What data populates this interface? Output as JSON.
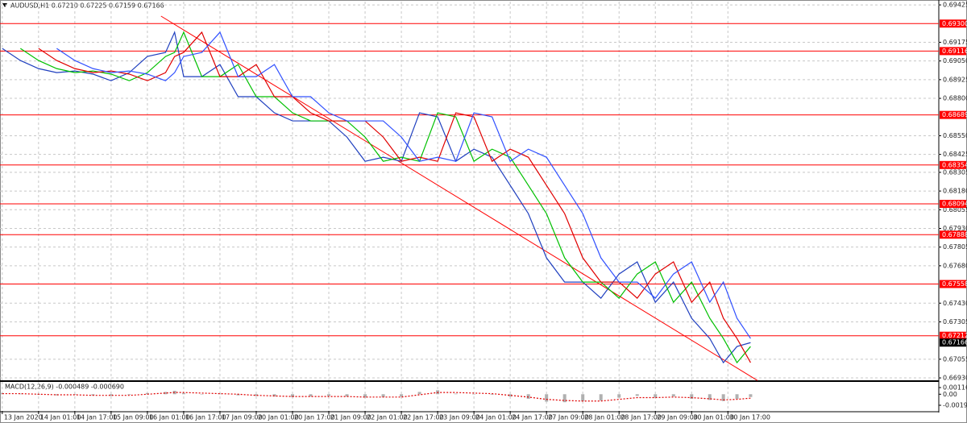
{
  "chart_data": {
    "type": "line",
    "title": "AUDUSD,H1  0.67210 0.67225 0.67159 0.67166",
    "x": [
      0,
      8,
      16,
      24,
      32,
      40,
      48,
      56,
      64,
      72,
      76,
      80,
      88,
      96,
      104,
      112,
      120,
      128,
      136,
      144,
      152,
      160,
      168,
      176,
      184,
      192,
      200,
      208,
      216,
      224,
      232,
      240,
      248,
      256,
      264,
      272,
      280,
      288,
      296,
      304,
      312,
      318,
      324,
      330
    ],
    "xlim": [
      -1,
      413
    ],
    "xticks": [
      {
        "value": 0,
        "label": "13 Jan 2020"
      },
      {
        "value": 16,
        "label": "14 Jan 01:00"
      },
      {
        "value": 32,
        "label": "14 Jan 17:00"
      },
      {
        "value": 48,
        "label": "15 Jan 09:00"
      },
      {
        "value": 64,
        "label": "16 Jan 01:00"
      },
      {
        "value": 80,
        "label": "16 Jan 17:00"
      },
      {
        "value": 96,
        "label": "17 Jan 09:00"
      },
      {
        "value": 112,
        "label": "20 Jan 01:00"
      },
      {
        "value": 128,
        "label": "20 Jan 17:00"
      },
      {
        "value": 144,
        "label": "21 Jan 09:00"
      },
      {
        "value": 160,
        "label": "22 Jan 01:00"
      },
      {
        "value": 176,
        "label": "22 Jan 17:00"
      },
      {
        "value": 192,
        "label": "23 Jan 09:00"
      },
      {
        "value": 208,
        "label": "24 Jan 01:00"
      },
      {
        "value": 224,
        "label": "24 Jan 17:00"
      },
      {
        "value": 240,
        "label": "27 Jan 09:00"
      },
      {
        "value": 256,
        "label": "28 Jan 01:00"
      },
      {
        "value": 272,
        "label": "28 Jan 17:00"
      },
      {
        "value": 288,
        "label": "29 Jan 09:00"
      },
      {
        "value": 304,
        "label": "30 Jan 01:00"
      },
      {
        "value": 320,
        "label": "30 Jan 17:00"
      }
    ],
    "ylim": [
      0.66914,
      0.69447
    ],
    "yticks": [
      0.69425,
      0.69175,
      {
        "value": 0.6905,
        "label": "0.69050"
      },
      0.68925,
      {
        "value": 0.688,
        "label": "0.68800"
      },
      {
        "value": 0.6855,
        "label": "0.68550"
      },
      0.68425,
      0.68305,
      {
        "value": 0.6818,
        "label": "0.68180"
      },
      0.68055,
      {
        "value": 0.6793,
        "label": "0.67930"
      },
      0.67805,
      {
        "value": 0.6768,
        "label": "0.67680"
      },
      {
        "value": 0.6743,
        "label": "0.67430"
      },
      0.67305,
      0.67055,
      {
        "value": 0.6693,
        "label": "0.66930"
      }
    ],
    "grid": true,
    "series": [
      {
        "color": "#1f3fbf",
        "values": [
          0.69134,
          0.69053,
          0.68999,
          0.68972,
          0.68983,
          0.68962,
          0.68918,
          0.68972,
          0.6908,
          0.69107,
          0.69242,
          0.68945,
          0.68945,
          0.69026,
          0.68811,
          0.68811,
          0.68703,
          0.68649,
          0.68649,
          0.68649,
          0.68541,
          0.68379,
          0.68406,
          0.68379,
          0.68703,
          0.68676,
          0.68379,
          0.6846,
          0.68406,
          0.68218,
          0.68029,
          0.67733,
          0.67571,
          0.67571,
          0.67463,
          0.67625,
          0.67706,
          0.67436,
          0.67571,
          0.67329,
          0.67194,
          0.67032,
          0.6714,
          0.67166
        ]
      },
      {
        "color": "#00c000",
        "values": [
          null,
          0.69134,
          0.69053,
          0.68999,
          0.68972,
          0.68983,
          0.68962,
          0.68918,
          0.68972,
          0.6908,
          0.69107,
          0.69242,
          0.68945,
          0.68945,
          0.69026,
          0.68811,
          0.68811,
          0.68703,
          0.68649,
          0.68649,
          0.68649,
          0.68541,
          0.68379,
          0.68406,
          0.68379,
          0.68703,
          0.68676,
          0.68379,
          0.6846,
          0.68406,
          0.68218,
          0.68029,
          0.67733,
          0.67571,
          0.67571,
          0.67463,
          0.67625,
          0.67706,
          0.67436,
          0.67571,
          0.67329,
          0.67194,
          0.67032,
          0.6714
        ]
      },
      {
        "color": "#e00000",
        "values": [
          null,
          null,
          0.69134,
          0.69053,
          0.68999,
          0.68972,
          0.68983,
          0.68962,
          0.68918,
          0.68972,
          0.6908,
          0.69107,
          0.69242,
          0.68945,
          0.68945,
          0.69026,
          0.68811,
          0.68811,
          0.68703,
          0.68649,
          0.68649,
          0.68649,
          0.68541,
          0.68379,
          0.68406,
          0.68379,
          0.68703,
          0.68676,
          0.68379,
          0.6846,
          0.68406,
          0.68218,
          0.68029,
          0.67733,
          0.67571,
          0.67571,
          0.67463,
          0.67625,
          0.67706,
          0.67436,
          0.67571,
          0.67329,
          0.67194,
          0.67032
        ]
      },
      {
        "color": "#3050ff",
        "values": [
          null,
          null,
          null,
          0.69134,
          0.69053,
          0.68999,
          0.68972,
          0.68983,
          0.68962,
          0.68918,
          0.68972,
          0.6908,
          0.69107,
          0.69242,
          0.68945,
          0.68945,
          0.69026,
          0.68811,
          0.68811,
          0.68703,
          0.68649,
          0.68649,
          0.68649,
          0.68541,
          0.68379,
          0.68406,
          0.68379,
          0.68703,
          0.68676,
          0.68379,
          0.6846,
          0.68406,
          0.68218,
          0.68029,
          0.67733,
          0.67571,
          0.67571,
          0.67463,
          0.67625,
          0.67706,
          0.67436,
          0.67571,
          0.67329,
          0.67194
        ]
      }
    ],
    "levels": [
      {
        "value": 0.693,
        "label": "0.69300"
      },
      {
        "value": 0.69116,
        "label": "0.69116"
      },
      {
        "value": 0.68689,
        "label": "0.68689"
      },
      {
        "value": 0.68354,
        "label": "0.68354"
      },
      {
        "value": 0.68094,
        "label": "0.68094"
      },
      {
        "value": 0.67888,
        "label": "0.67888"
      },
      {
        "value": 0.67558,
        "label": "0.67558"
      },
      {
        "value": 0.67212,
        "label": "0.67212"
      }
    ],
    "level_color": "#ff0000",
    "current_price": {
      "value": 0.67166,
      "label": "0.67166"
    },
    "trendline": {
      "x": [
        70,
        333
      ],
      "values": [
        0.6935,
        0.66913
      ],
      "color": "#ff0000"
    },
    "macd": {
      "label": "MACD(12,26,9) -0.000489 -0.000690",
      "ylim": [
        -0.00293,
        0.00216
      ],
      "yticks": [
        0.001167,
        {
          "value": 0,
          "label": "0.00"
        },
        -0.001942
      ],
      "color": "#b0b0b0",
      "signal_color": "#e00000",
      "values": [
        0.0002,
        0.0001,
        -0.0001,
        -0.0002,
        -0.0001,
        -0.0002,
        -0.0003,
        -0.0001,
        0.0002,
        0.0004,
        0.0006,
        0.0002,
        0.0,
        0.0001,
        -0.0002,
        -0.0003,
        -0.0004,
        -0.0005,
        -0.0004,
        -0.0003,
        -0.0004,
        -0.0006,
        -0.0005,
        -0.0004,
        0.0004,
        0.0007,
        0.0001,
        0.0,
        -0.0001,
        -0.0004,
        -0.0008,
        -0.0013,
        -0.0014,
        -0.0012,
        -0.0011,
        -0.0006,
        -0.0003,
        -0.0006,
        -0.0004,
        -0.0008,
        -0.001,
        -0.0012,
        -0.0008,
        -0.000489
      ],
      "signal": [
        0.0001,
        0.0001,
        0.0,
        -0.0001,
        -0.0001,
        -0.0002,
        -0.0002,
        -0.0002,
        0.0,
        0.0002,
        0.0003,
        0.0003,
        0.0002,
        0.0001,
        0.0,
        -0.0002,
        -0.0003,
        -0.0004,
        -0.0004,
        -0.0004,
        -0.0004,
        -0.0005,
        -0.0005,
        -0.0005,
        -0.0001,
        0.0003,
        0.0003,
        0.0002,
        0.0001,
        -0.0002,
        -0.0005,
        -0.0009,
        -0.0011,
        -0.0012,
        -0.0012,
        -0.0009,
        -0.0006,
        -0.0006,
        -0.0005,
        -0.0006,
        -0.0008,
        -0.001,
        -0.0009,
        -0.00069
      ]
    }
  }
}
